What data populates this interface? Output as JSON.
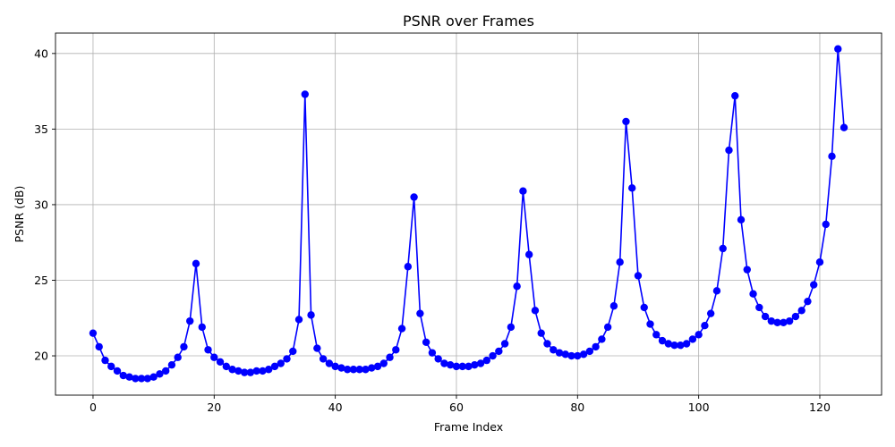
{
  "chart_data": {
    "type": "line",
    "title": "PSNR over Frames",
    "xlabel": "Frame Index",
    "ylabel": "PSNR (dB)",
    "xlim": [
      -6.2,
      130.2
    ],
    "ylim": [
      17.4,
      41.35
    ],
    "xticks": [
      0,
      20,
      40,
      60,
      80,
      100,
      120
    ],
    "yticks": [
      20,
      25,
      30,
      35,
      40
    ],
    "grid": true,
    "color": "#0000ff",
    "series": [
      {
        "x": [
          0,
          1,
          2,
          3,
          4,
          5,
          6,
          7,
          8,
          9,
          10,
          11,
          12,
          13,
          14,
          15,
          16,
          17,
          18,
          19,
          20,
          21,
          22,
          23,
          24,
          25,
          26,
          27,
          28,
          29,
          30,
          31,
          32,
          33,
          34,
          35,
          36,
          37,
          38,
          39,
          40,
          41,
          42,
          43,
          44,
          45,
          46,
          47,
          48,
          49,
          50,
          51,
          52,
          53,
          54,
          55,
          56,
          57,
          58,
          59,
          60,
          61,
          62,
          63,
          64,
          65,
          66,
          67,
          68,
          69,
          70,
          71,
          72,
          73,
          74,
          75,
          76,
          77,
          78,
          79,
          80,
          81,
          82,
          83,
          84,
          85,
          86,
          87,
          88,
          89,
          90,
          91,
          92,
          93,
          94,
          95,
          96,
          97,
          98,
          99,
          100,
          101,
          102,
          103,
          104,
          105,
          106,
          107,
          108,
          109,
          110,
          111,
          112,
          113,
          114,
          115,
          116,
          117,
          118,
          119,
          120,
          121,
          122,
          123,
          124
        ],
        "values": [
          21.5,
          20.6,
          19.7,
          19.3,
          19.0,
          18.7,
          18.6,
          18.5,
          18.5,
          18.5,
          18.6,
          18.8,
          19.0,
          19.4,
          19.9,
          20.6,
          22.3,
          26.1,
          21.9,
          20.4,
          19.9,
          19.6,
          19.3,
          19.1,
          19.0,
          18.9,
          18.9,
          19.0,
          19.0,
          19.1,
          19.3,
          19.5,
          19.8,
          20.3,
          22.4,
          37.3,
          22.7,
          20.5,
          19.8,
          19.5,
          19.3,
          19.2,
          19.1,
          19.1,
          19.1,
          19.1,
          19.2,
          19.3,
          19.5,
          19.9,
          20.4,
          21.8,
          25.9,
          30.5,
          22.8,
          20.9,
          20.2,
          19.8,
          19.5,
          19.4,
          19.3,
          19.3,
          19.3,
          19.4,
          19.5,
          19.7,
          20.0,
          20.3,
          20.8,
          21.9,
          24.6,
          30.9,
          26.7,
          23.0,
          21.5,
          20.8,
          20.4,
          20.2,
          20.1,
          20.0,
          20.0,
          20.1,
          20.3,
          20.6,
          21.1,
          21.9,
          23.3,
          26.2,
          35.5,
          31.1,
          25.3,
          23.2,
          22.1,
          21.4,
          21.0,
          20.8,
          20.7,
          20.7,
          20.8,
          21.1,
          21.4,
          22.0,
          22.8,
          24.3,
          27.1,
          33.6,
          37.2,
          29.0,
          25.7,
          24.1,
          23.2,
          22.6,
          22.3,
          22.2,
          22.2,
          22.3,
          22.6,
          23.0,
          23.6,
          24.7,
          26.2,
          28.7,
          33.2,
          40.3,
          35.1
        ]
      }
    ]
  }
}
